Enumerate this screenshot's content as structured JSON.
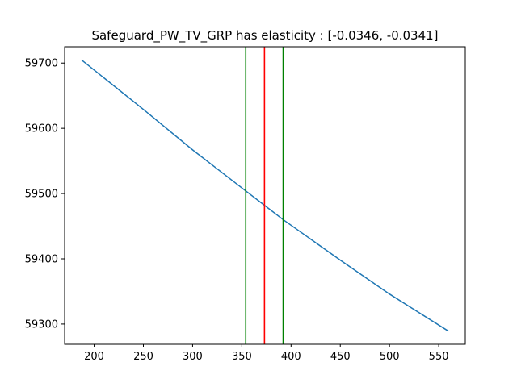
{
  "chart_data": {
    "type": "line",
    "title": "Safeguard_PW_TV_GRP has elasticity : [-0.0346, -0.0341]",
    "xlabel": "",
    "ylabel": "",
    "xlim": [
      170,
      577
    ],
    "ylim": [
      59269,
      59725
    ],
    "grid": false,
    "xticks": [
      200,
      250,
      300,
      350,
      400,
      450,
      500,
      550
    ],
    "yticks": [
      59300,
      59400,
      59500,
      59600,
      59700
    ],
    "series": [
      {
        "color": "#1f77b4",
        "x": [
          187,
          250,
          300,
          354,
          373,
          392,
          450,
          500,
          560
        ],
        "y": [
          59705,
          59629,
          59567,
          59504,
          59482,
          59460,
          59398,
          59346,
          59289
        ]
      }
    ],
    "vertical_lines": [
      {
        "x": 354,
        "color": "#008000"
      },
      {
        "x": 373,
        "color": "#ff0000"
      },
      {
        "x": 392,
        "color": "#008000"
      }
    ]
  }
}
